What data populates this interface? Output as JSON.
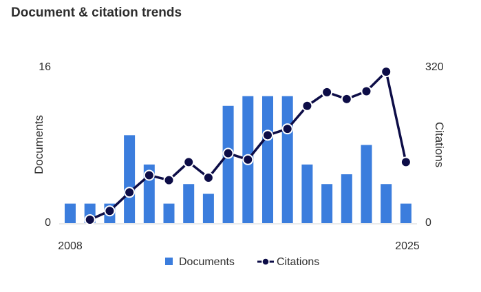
{
  "title": "Document & citation trends",
  "chart_data": {
    "type": "bar",
    "categories": [
      "2008",
      "2009",
      "2010",
      "2011",
      "2012",
      "2013",
      "2014",
      "2015",
      "2016",
      "2017",
      "2018",
      "2019",
      "2020",
      "2021",
      "2022",
      "2023",
      "2024",
      "2025"
    ],
    "series": [
      {
        "name": "Documents",
        "type": "bar",
        "axis": "left",
        "color": "#3b7ddd",
        "values": [
          2,
          2,
          2,
          9,
          6,
          2,
          4,
          3,
          12,
          13,
          13,
          13,
          6,
          4,
          5,
          8,
          4,
          2
        ]
      },
      {
        "name": "Citations",
        "type": "line",
        "axis": "right",
        "color": "#0d0d47",
        "values": [
          null,
          7,
          25,
          63,
          98,
          88,
          125,
          93,
          143,
          130,
          180,
          193,
          240,
          268,
          254,
          270,
          310,
          125
        ]
      }
    ],
    "ylabel_left": "Documents",
    "ylabel_right": "Citations",
    "ylim_left": [
      0,
      16
    ],
    "ylim_right": [
      0,
      320
    ],
    "y_ticks_left": [
      "0",
      "16"
    ],
    "y_ticks_right": [
      "0",
      "320"
    ],
    "x_ticks_shown": [
      "2008",
      "2025"
    ],
    "grid": false,
    "legend_position": "bottom"
  }
}
